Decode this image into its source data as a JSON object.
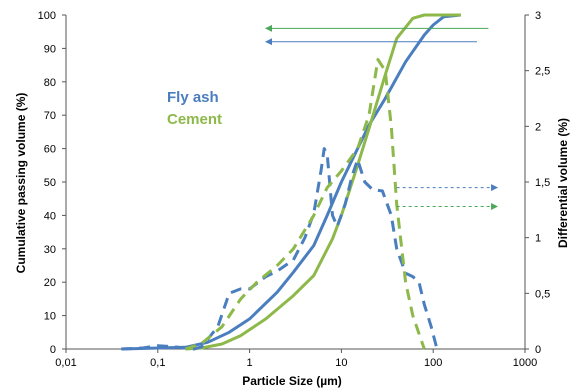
{
  "chart_data": {
    "type": "line",
    "xlabel": "Particle Size (µm)",
    "ylabel": "Cumulative passing volume (%)",
    "y2label": "Differential volume (%)",
    "xscale": "log",
    "xlim": [
      0.01,
      1000
    ],
    "ylim": [
      0,
      100
    ],
    "y2lim": [
      0,
      3
    ],
    "x_ticks": [
      0.01,
      0.1,
      1,
      10,
      100,
      1000
    ],
    "x_tick_labels": [
      "0,01",
      "0,1",
      "1",
      "10",
      "100",
      "1000"
    ],
    "y_ticks": [
      0,
      10,
      20,
      30,
      40,
      50,
      60,
      70,
      80,
      90,
      100
    ],
    "y_tick_labels": [
      "0",
      "10",
      "20",
      "30",
      "40",
      "50",
      "60",
      "70",
      "80",
      "90",
      "100"
    ],
    "y2_ticks": [
      0,
      0.5,
      1,
      1.5,
      2,
      2.5,
      3
    ],
    "y2_tick_labels": [
      "0",
      "0,5",
      "1",
      "1,5",
      "2",
      "2,5",
      "3"
    ],
    "grid": false,
    "legend_position": "upper-left",
    "series": [
      {
        "name": "Fly ash",
        "kind": "cumulative",
        "axis": "left",
        "color": "#4a7ebf",
        "style": "solid",
        "points": [
          [
            0.04,
            0
          ],
          [
            0.2,
            0.5
          ],
          [
            0.35,
            2
          ],
          [
            0.6,
            5
          ],
          [
            1,
            9
          ],
          [
            2,
            17
          ],
          [
            3,
            23
          ],
          [
            5,
            31
          ],
          [
            7,
            40
          ],
          [
            10,
            50
          ],
          [
            15,
            60
          ],
          [
            20,
            67
          ],
          [
            30,
            75
          ],
          [
            50,
            86
          ],
          [
            80,
            94
          ],
          [
            100,
            97
          ],
          [
            130,
            99.5
          ],
          [
            200,
            100
          ]
        ]
      },
      {
        "name": "Cement",
        "kind": "cumulative",
        "axis": "left",
        "color": "#8db84a",
        "style": "solid",
        "points": [
          [
            0.2,
            0
          ],
          [
            0.3,
            0.3
          ],
          [
            0.5,
            1.5
          ],
          [
            0.8,
            4
          ],
          [
            1.5,
            9
          ],
          [
            3,
            16
          ],
          [
            5,
            22
          ],
          [
            8,
            33
          ],
          [
            10,
            40
          ],
          [
            15,
            55
          ],
          [
            20,
            66
          ],
          [
            30,
            82
          ],
          [
            40,
            93
          ],
          [
            60,
            99
          ],
          [
            80,
            100
          ],
          [
            200,
            100
          ]
        ]
      },
      {
        "name": "Fly ash",
        "kind": "differential",
        "axis": "right",
        "color": "#4a7ebf",
        "style": "dashed",
        "points": [
          [
            0.04,
            0
          ],
          [
            0.07,
            0.01
          ],
          [
            0.1,
            0.03
          ],
          [
            0.15,
            0.02
          ],
          [
            0.25,
            0
          ],
          [
            0.3,
            0.02
          ],
          [
            0.45,
            0.2
          ],
          [
            0.6,
            0.5
          ],
          [
            0.8,
            0.54
          ],
          [
            1,
            0.54
          ],
          [
            1.5,
            0.65
          ],
          [
            2,
            0.7
          ],
          [
            3,
            0.8
          ],
          [
            4,
            1
          ],
          [
            5,
            1.22
          ],
          [
            6,
            1.6
          ],
          [
            6.5,
            1.8
          ],
          [
            7,
            1.75
          ],
          [
            8,
            1.2
          ],
          [
            9,
            1.1
          ],
          [
            11,
            1.3
          ],
          [
            13,
            1.55
          ],
          [
            15,
            1.7
          ],
          [
            18,
            1.5
          ],
          [
            22,
            1.43
          ],
          [
            28,
            1.42
          ],
          [
            35,
            1.2
          ],
          [
            40,
            0.9
          ],
          [
            50,
            0.68
          ],
          [
            60,
            0.65
          ],
          [
            70,
            0.6
          ],
          [
            80,
            0.4
          ],
          [
            95,
            0.2
          ],
          [
            110,
            0
          ]
        ]
      },
      {
        "name": "Cement",
        "kind": "differential",
        "axis": "right",
        "color": "#8db84a",
        "style": "dashed",
        "points": [
          [
            0.2,
            0
          ],
          [
            0.3,
            0.05
          ],
          [
            0.5,
            0.2
          ],
          [
            0.8,
            0.45
          ],
          [
            1.2,
            0.6
          ],
          [
            2,
            0.75
          ],
          [
            3,
            0.9
          ],
          [
            5,
            1.2
          ],
          [
            7,
            1.45
          ],
          [
            10,
            1.6
          ],
          [
            15,
            1.8
          ],
          [
            20,
            2.1
          ],
          [
            25,
            2.6
          ],
          [
            30,
            2.5
          ],
          [
            35,
            2.0
          ],
          [
            40,
            1.3
          ],
          [
            50,
            0.6
          ],
          [
            60,
            0.3
          ],
          [
            80,
            0
          ]
        ]
      }
    ],
    "annotations": [
      {
        "type": "arrow",
        "axis": "left",
        "from": [
          400,
          96
        ],
        "to": [
          1.5,
          96
        ],
        "color": "#4ba85a",
        "style": "solid"
      },
      {
        "type": "arrow",
        "axis": "left",
        "from": [
          300,
          92
        ],
        "to": [
          1.5,
          92
        ],
        "color": "#4a7ebf",
        "style": "solid"
      },
      {
        "type": "arrow",
        "axis": "right",
        "from": [
          40,
          1.45
        ],
        "to": [
          500,
          1.45
        ],
        "color": "#4a7ebf",
        "style": "dashed"
      },
      {
        "type": "arrow",
        "axis": "right",
        "from": [
          40,
          1.28
        ],
        "to": [
          500,
          1.28
        ],
        "color": "#4ba85a",
        "style": "dashed"
      }
    ]
  }
}
